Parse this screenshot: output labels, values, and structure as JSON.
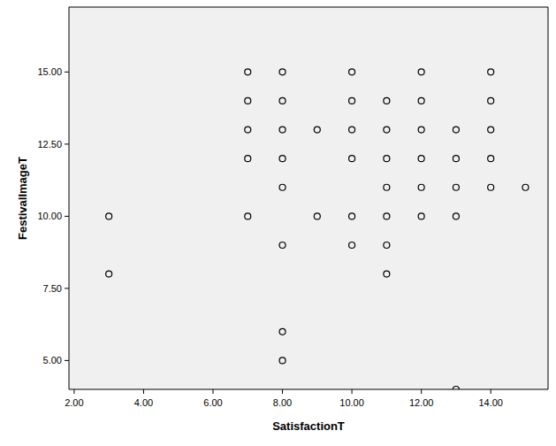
{
  "chart_data": {
    "type": "scatter",
    "x_label": "SatisfactionT",
    "y_label": "FestivalImageT",
    "x": [
      3,
      3,
      7,
      7,
      7,
      7,
      7,
      8,
      8,
      8,
      8,
      8,
      8,
      8,
      8,
      9,
      9,
      10,
      10,
      10,
      10,
      10,
      10,
      11,
      11,
      11,
      11,
      11,
      11,
      11,
      12,
      12,
      12,
      12,
      12,
      12,
      13,
      13,
      13,
      13,
      13,
      14,
      14,
      14,
      14,
      14,
      15
    ],
    "values": [
      10,
      8,
      15,
      14,
      13,
      12,
      10,
      15,
      14,
      13,
      12,
      11,
      9,
      6,
      5,
      13,
      10,
      15,
      14,
      13,
      12,
      10,
      9,
      14,
      13,
      12,
      11,
      10,
      9,
      8,
      15,
      14,
      13,
      12,
      11,
      10,
      13,
      12,
      11,
      10,
      4,
      15,
      14,
      13,
      12,
      11,
      11
    ],
    "color": "#000000",
    "marker": "circle-open",
    "xlim": [
      1.85,
      15.65
    ],
    "ylim": [
      4.0,
      17.25
    ],
    "xticks": [
      {
        "value": 2,
        "label": "2.00"
      },
      {
        "value": 4,
        "label": "4.00"
      },
      {
        "value": 6,
        "label": "6.00"
      },
      {
        "value": 8,
        "label": "8.00"
      },
      {
        "value": 10,
        "label": "10.00"
      },
      {
        "value": 12,
        "label": "12.00"
      },
      {
        "value": 14,
        "label": "14.00"
      }
    ],
    "yticks": [
      {
        "value": 5,
        "label": "5.00"
      },
      {
        "value": 7.5,
        "label": "7.50"
      },
      {
        "value": 10,
        "label": "10.00"
      },
      {
        "value": 12.5,
        "label": "12.50"
      },
      {
        "value": 15,
        "label": "15.00"
      }
    ],
    "grid": false
  }
}
